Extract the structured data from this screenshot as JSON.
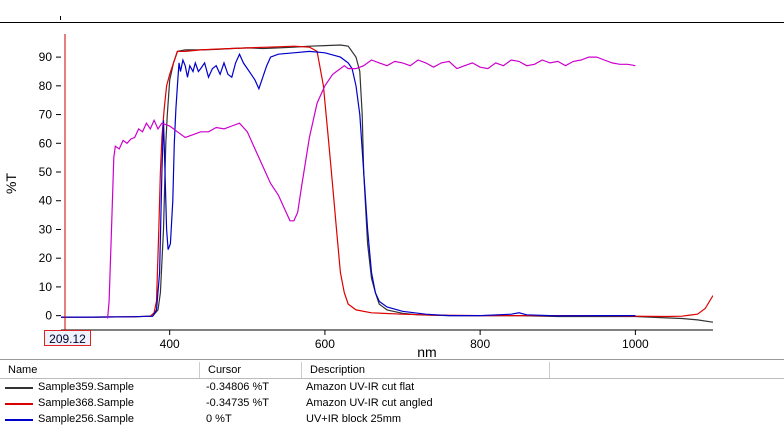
{
  "chart_data": {
    "type": "line",
    "xlabel": "nm",
    "ylabel": "%T",
    "xlim": [
      260,
      1100
    ],
    "ylim": [
      -5,
      97
    ],
    "xticks": [
      400,
      600,
      800,
      1000
    ],
    "yticks": [
      0,
      10,
      20,
      30,
      40,
      50,
      60,
      70,
      80,
      90
    ],
    "grid": false,
    "cursor_x": 209.12,
    "cursor_label": "209.12",
    "series": [
      {
        "name": "Sample359.Sample",
        "color": "#333333",
        "points": [
          [
            260,
            -0.5
          ],
          [
            300,
            -0.5
          ],
          [
            350,
            -0.4
          ],
          [
            378,
            -0.2
          ],
          [
            385,
            2
          ],
          [
            388,
            8
          ],
          [
            392,
            30
          ],
          [
            395,
            60
          ],
          [
            397,
            70
          ],
          [
            400,
            82
          ],
          [
            405,
            88
          ],
          [
            410,
            92
          ],
          [
            420,
            92.5
          ],
          [
            440,
            92.5
          ],
          [
            460,
            92.7
          ],
          [
            480,
            93
          ],
          [
            500,
            93.2
          ],
          [
            520,
            93
          ],
          [
            540,
            93.2
          ],
          [
            560,
            93.5
          ],
          [
            580,
            93.8
          ],
          [
            600,
            94
          ],
          [
            620,
            94.2
          ],
          [
            630,
            93.8
          ],
          [
            640,
            90
          ],
          [
            645,
            85
          ],
          [
            648,
            70
          ],
          [
            650,
            50
          ],
          [
            655,
            25
          ],
          [
            660,
            13
          ],
          [
            665,
            8
          ],
          [
            670,
            4
          ],
          [
            680,
            2
          ],
          [
            700,
            0.8
          ],
          [
            720,
            0.3
          ],
          [
            760,
            0
          ],
          [
            800,
            0
          ],
          [
            850,
            0
          ],
          [
            900,
            -0.3
          ],
          [
            950,
            -0.3
          ],
          [
            1000,
            -0.3
          ],
          [
            1040,
            -0.8
          ],
          [
            1060,
            -1
          ],
          [
            1080,
            -1.5
          ],
          [
            1100,
            -2.3
          ]
        ]
      },
      {
        "name": "Sample368.Sample",
        "color": "#dd0000",
        "points": [
          [
            260,
            -0.5
          ],
          [
            300,
            -0.5
          ],
          [
            350,
            -0.4
          ],
          [
            375,
            -0.2
          ],
          [
            380,
            1
          ],
          [
            383,
            5
          ],
          [
            386,
            30
          ],
          [
            388,
            50
          ],
          [
            390,
            62
          ],
          [
            393,
            72
          ],
          [
            396,
            80
          ],
          [
            400,
            84
          ],
          [
            405,
            88
          ],
          [
            410,
            92
          ],
          [
            420,
            92
          ],
          [
            440,
            92.5
          ],
          [
            460,
            92.8
          ],
          [
            480,
            93
          ],
          [
            500,
            93.2
          ],
          [
            520,
            93.4
          ],
          [
            540,
            93.6
          ],
          [
            560,
            93.8
          ],
          [
            580,
            93.5
          ],
          [
            590,
            92
          ],
          [
            598,
            80
          ],
          [
            605,
            60
          ],
          [
            610,
            45
          ],
          [
            615,
            30
          ],
          [
            620,
            15
          ],
          [
            625,
            8
          ],
          [
            630,
            4
          ],
          [
            640,
            2
          ],
          [
            660,
            1
          ],
          [
            700,
            0.5
          ],
          [
            740,
            0.2
          ],
          [
            800,
            0
          ],
          [
            850,
            0
          ],
          [
            900,
            0
          ],
          [
            950,
            0
          ],
          [
            1000,
            -0.2
          ],
          [
            1040,
            -0.3
          ],
          [
            1060,
            -0.2
          ],
          [
            1070,
            0.2
          ],
          [
            1080,
            0.5
          ],
          [
            1090,
            2.5
          ],
          [
            1100,
            7
          ]
        ]
      },
      {
        "name": "Sample256.Sample",
        "color": "#0000cc",
        "points": [
          [
            260,
            -0.5
          ],
          [
            300,
            -0.5
          ],
          [
            350,
            -0.4
          ],
          [
            378,
            -0.2
          ],
          [
            383,
            2
          ],
          [
            387,
            15
          ],
          [
            390,
            50
          ],
          [
            392,
            68
          ],
          [
            394,
            50
          ],
          [
            396,
            30
          ],
          [
            398,
            23
          ],
          [
            401,
            25
          ],
          [
            404,
            40
          ],
          [
            406,
            60
          ],
          [
            408,
            72
          ],
          [
            410,
            80
          ],
          [
            412,
            88
          ],
          [
            414,
            85
          ],
          [
            417,
            89
          ],
          [
            420,
            87
          ],
          [
            423,
            83
          ],
          [
            426,
            87
          ],
          [
            430,
            85
          ],
          [
            433,
            88
          ],
          [
            437,
            85
          ],
          [
            440,
            86
          ],
          [
            445,
            88
          ],
          [
            450,
            83
          ],
          [
            455,
            86
          ],
          [
            460,
            87
          ],
          [
            465,
            84
          ],
          [
            470,
            88
          ],
          [
            475,
            84
          ],
          [
            480,
            83
          ],
          [
            485,
            88
          ],
          [
            490,
            91
          ],
          [
            495,
            88
          ],
          [
            500,
            86
          ],
          [
            505,
            84
          ],
          [
            510,
            82
          ],
          [
            515,
            79
          ],
          [
            520,
            83
          ],
          [
            525,
            87
          ],
          [
            530,
            90
          ],
          [
            540,
            91
          ],
          [
            560,
            91.5
          ],
          [
            580,
            92
          ],
          [
            600,
            91.5
          ],
          [
            620,
            90
          ],
          [
            630,
            88
          ],
          [
            635,
            86
          ],
          [
            640,
            80
          ],
          [
            645,
            70
          ],
          [
            650,
            50
          ],
          [
            655,
            30
          ],
          [
            660,
            15
          ],
          [
            665,
            8
          ],
          [
            670,
            5
          ],
          [
            680,
            3
          ],
          [
            700,
            1.5
          ],
          [
            730,
            0.5
          ],
          [
            760,
            0
          ],
          [
            800,
            0
          ],
          [
            840,
            0.5
          ],
          [
            850,
            1
          ],
          [
            860,
            0.3
          ],
          [
            900,
            -0.1
          ],
          [
            950,
            0
          ],
          [
            980,
            0
          ],
          [
            1000,
            0
          ]
        ]
      },
      {
        "name": "",
        "color": "#cc00cc",
        "points": [
          [
            320,
            -1
          ],
          [
            322,
            5
          ],
          [
            325,
            30
          ],
          [
            328,
            55
          ],
          [
            330,
            59
          ],
          [
            335,
            58
          ],
          [
            340,
            61
          ],
          [
            345,
            60
          ],
          [
            350,
            61.5
          ],
          [
            355,
            62
          ],
          [
            360,
            65
          ],
          [
            365,
            64
          ],
          [
            370,
            67
          ],
          [
            375,
            65
          ],
          [
            380,
            68
          ],
          [
            385,
            65
          ],
          [
            390,
            67
          ],
          [
            400,
            66
          ],
          [
            410,
            64
          ],
          [
            420,
            62
          ],
          [
            430,
            63
          ],
          [
            440,
            64
          ],
          [
            450,
            64
          ],
          [
            460,
            65.5
          ],
          [
            470,
            65
          ],
          [
            480,
            66
          ],
          [
            490,
            67
          ],
          [
            500,
            64
          ],
          [
            510,
            58
          ],
          [
            520,
            52
          ],
          [
            530,
            46
          ],
          [
            540,
            42
          ],
          [
            550,
            36
          ],
          [
            555,
            33
          ],
          [
            560,
            33
          ],
          [
            565,
            36
          ],
          [
            570,
            45
          ],
          [
            580,
            62
          ],
          [
            590,
            74
          ],
          [
            600,
            80
          ],
          [
            610,
            84
          ],
          [
            620,
            86
          ],
          [
            625,
            87
          ],
          [
            630,
            86
          ],
          [
            640,
            86
          ],
          [
            650,
            87
          ],
          [
            660,
            89
          ],
          [
            670,
            88
          ],
          [
            680,
            87
          ],
          [
            690,
            88.5
          ],
          [
            700,
            88
          ],
          [
            710,
            87
          ],
          [
            720,
            89
          ],
          [
            730,
            88
          ],
          [
            740,
            86.5
          ],
          [
            750,
            88
          ],
          [
            760,
            88.5
          ],
          [
            770,
            86
          ],
          [
            780,
            87
          ],
          [
            790,
            88
          ],
          [
            800,
            86.5
          ],
          [
            810,
            86
          ],
          [
            820,
            88
          ],
          [
            830,
            87
          ],
          [
            840,
            89
          ],
          [
            850,
            88.5
          ],
          [
            860,
            87
          ],
          [
            870,
            87.5
          ],
          [
            880,
            89
          ],
          [
            890,
            88
          ],
          [
            900,
            88.5
          ],
          [
            910,
            87
          ],
          [
            920,
            88.5
          ],
          [
            930,
            89
          ],
          [
            940,
            90
          ],
          [
            950,
            90
          ],
          [
            960,
            89
          ],
          [
            970,
            88
          ],
          [
            980,
            87.5
          ],
          [
            990,
            87.5
          ],
          [
            1000,
            87
          ]
        ]
      }
    ]
  },
  "table": {
    "headers": [
      "Name",
      "Cursor",
      "Description"
    ],
    "rows": [
      {
        "name": "Sample359.Sample",
        "cursor": "-0.34806 %T",
        "description": "Amazon UV-IR cut flat",
        "color": "#333333"
      },
      {
        "name": "Sample368.Sample",
        "cursor": "-0.34735 %T",
        "description": "Amazon UV-IR cut angled",
        "color": "#dd0000"
      },
      {
        "name": "Sample256.Sample",
        "cursor": "0 %T",
        "description": "UV+IR block 25mm",
        "color": "#0000cc"
      }
    ]
  }
}
